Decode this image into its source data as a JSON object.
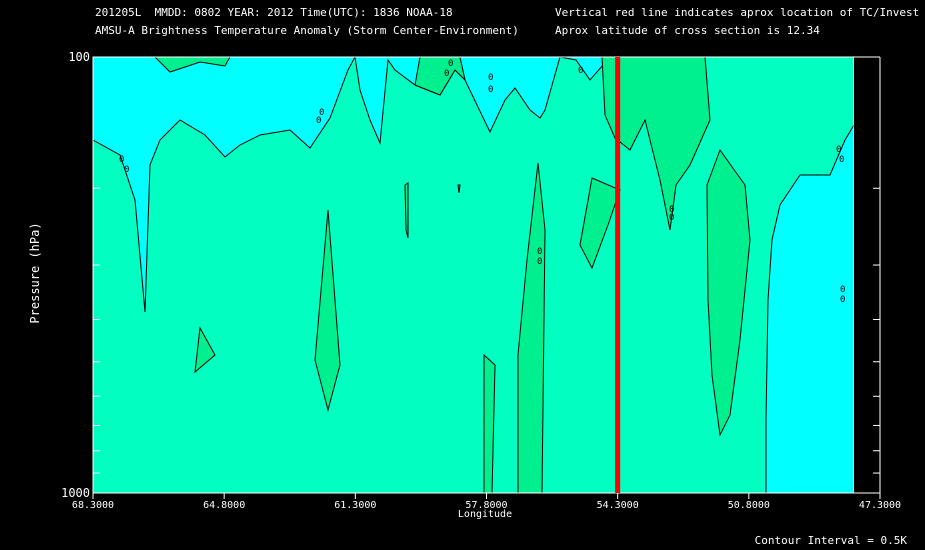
{
  "header": {
    "line1": "201205L  MMDD: 0802 YEAR: 2012 Time(UTC): 1836 NOAA-18",
    "line2": "AMSU-A Brightness Temperature Anomaly (Storm Center-Environment)",
    "line3": "Vertical red line indicates aprox location of TC/Invest",
    "line4": "Aprox latitude of cross section is 12.34"
  },
  "footer": {
    "contour_interval": "Contour Interval = 0.5K"
  },
  "colors": {
    "background": "#000000",
    "cyan": "#00ffff",
    "green1": "#00ffc0",
    "green2": "#00f090",
    "marker": "#ff0000"
  },
  "chart_data": {
    "type": "heatmap",
    "xlabel": "Longitude",
    "ylabel": "Pressure (hPa)",
    "x_ticks": [
      "68.3000",
      "64.8000",
      "61.3000",
      "57.8000",
      "54.3000",
      "50.8000",
      "47.3000"
    ],
    "xlim": [
      68.3,
      47.3
    ],
    "y_ticks": [
      "100",
      "1000"
    ],
    "ylim": [
      1000,
      100
    ],
    "y_scale": "log",
    "marker_longitude": 54.3,
    "contour_label": "0",
    "contour_interval": 0.5
  }
}
